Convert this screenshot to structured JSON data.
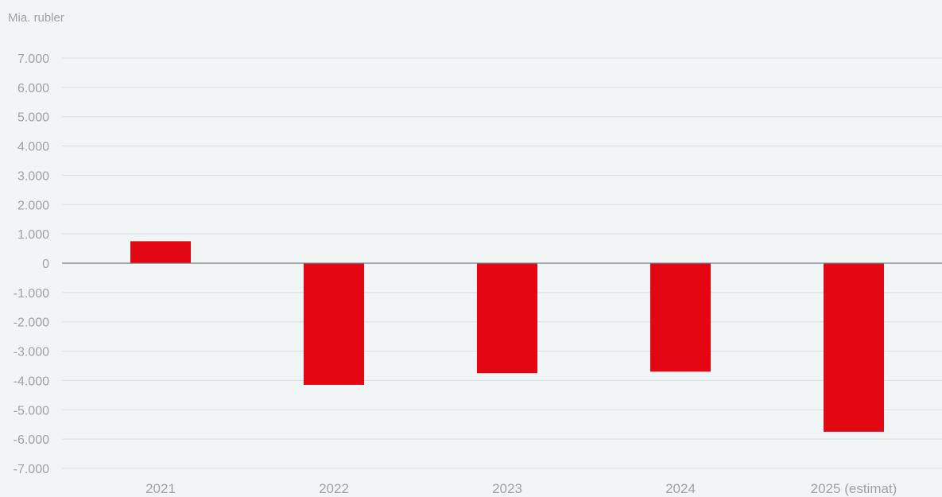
{
  "chart_data": {
    "type": "bar",
    "unit_label": "Mia. rubler",
    "categories": [
      "2021",
      "2022",
      "2023",
      "2024",
      "2025 (estimat)"
    ],
    "values": [
      750,
      -4150,
      -3750,
      -3700,
      -5750
    ],
    "ylim": [
      -7000,
      7000
    ],
    "yticks": [
      7000,
      6000,
      5000,
      4000,
      3000,
      2000,
      1000,
      0,
      -1000,
      -2000,
      -3000,
      -4000,
      -5000,
      -6000,
      -7000
    ],
    "ytick_labels": [
      "7.000",
      "6.000",
      "5.000",
      "4.000",
      "3.000",
      "2.000",
      "1.000",
      "0",
      "-1.000",
      "-2.000",
      "-3.000",
      "-4.000",
      "-5.000",
      "-6.000",
      "-7.000"
    ],
    "grid": true,
    "legend": "none",
    "colors": {
      "bar": "#e30613",
      "grid": "#d9dfe2",
      "zero_line": "#6f7b82",
      "text": "#9aa3a8",
      "background": "#f2f5f6"
    }
  }
}
